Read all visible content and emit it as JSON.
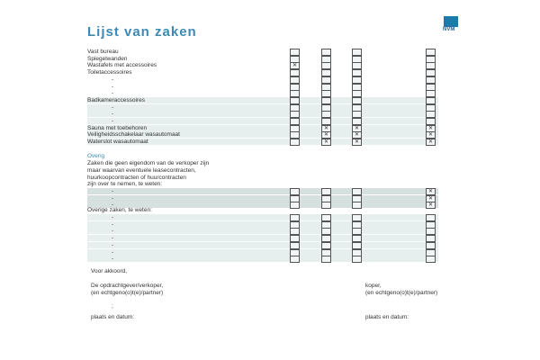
{
  "title": "Lijst van zaken",
  "logo": "NVM",
  "section1": [
    {
      "label": "Vast bureau",
      "checks": [
        false,
        false,
        false,
        false
      ]
    },
    {
      "label": "Spiegelwanden",
      "checks": [
        false,
        false,
        false,
        false
      ]
    },
    {
      "label": "Wastafels met accessoires",
      "checks": [
        true,
        false,
        false,
        false
      ]
    },
    {
      "label": "Toiletaccessoires",
      "checks": [
        false,
        false,
        false,
        false
      ]
    },
    {
      "label": "-",
      "checks": [
        false,
        false,
        false,
        false
      ]
    },
    {
      "label": "-",
      "checks": [
        false,
        false,
        false,
        false
      ]
    },
    {
      "label": "-",
      "checks": [
        false,
        false,
        false,
        false
      ]
    },
    {
      "label": "Badkameraccessoires",
      "checks": [
        false,
        false,
        false,
        false
      ]
    },
    {
      "label": "-",
      "checks": [
        false,
        false,
        false,
        false
      ]
    },
    {
      "label": "-",
      "checks": [
        false,
        false,
        false,
        false
      ]
    },
    {
      "label": "-",
      "checks": [
        false,
        false,
        false,
        false
      ]
    },
    {
      "label": "Sauna met toebehoren",
      "checks": [
        false,
        true,
        true,
        true
      ]
    },
    {
      "label": "Veiligheidsschakelaar wasautomaat",
      "checks": [
        false,
        true,
        true,
        true
      ]
    },
    {
      "label": "Waterslot wasautomaat",
      "checks": [
        false,
        true,
        true,
        true
      ]
    }
  ],
  "overig": {
    "heading": "Overig",
    "intro": [
      "Zaken die geen eigendom van de verkoper zijn",
      "maar waarvan eventuele leasecontracten,",
      "huurkoopcontracten of huurcontracten",
      "zijn over te nemen, te weten:"
    ],
    "rows": [
      {
        "label": "-",
        "checks": [
          false,
          false,
          false,
          true
        ]
      },
      {
        "label": "-",
        "checks": [
          false,
          false,
          false,
          true
        ]
      },
      {
        "label": "-",
        "checks": [
          false,
          false,
          false,
          true
        ]
      }
    ],
    "other_heading": "Overige zaken, te weten:",
    "other_rows": [
      {
        "label": "-",
        "checks": [
          false,
          false,
          false,
          false
        ]
      },
      {
        "label": "-",
        "checks": [
          false,
          false,
          false,
          false
        ]
      },
      {
        "label": "-",
        "checks": [
          false,
          false,
          false,
          false
        ]
      },
      {
        "label": "-",
        "checks": [
          false,
          false,
          false,
          false
        ]
      },
      {
        "label": "-",
        "checks": [
          false,
          false,
          false,
          false
        ]
      },
      {
        "label": "-",
        "checks": [
          false,
          false,
          false,
          false
        ]
      },
      {
        "label": "-",
        "checks": [
          false,
          false,
          false,
          false
        ]
      }
    ]
  },
  "signature": {
    "agree": "Voor akkoord,",
    "seller_line1": "De opdrachtgever/verkoper,",
    "seller_line2": "(en echtgeno(o)t(e)/partner)",
    "buyer_line1": "koper,",
    "buyer_line2": "(en echtgeno(o)t(e)/partner)",
    "mark": ";",
    "place_date_left": "plaats en datum:",
    "place_date_right": "plaats en datum:"
  }
}
